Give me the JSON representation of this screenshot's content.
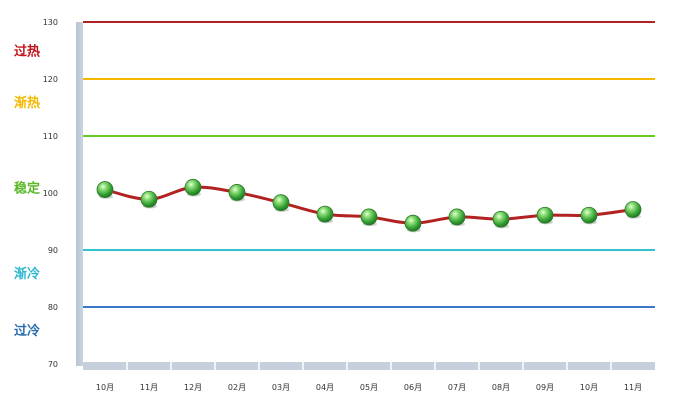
{
  "chart_data": {
    "type": "line",
    "title": "",
    "xlabel": "",
    "ylabel": "",
    "ylim": [
      70,
      130
    ],
    "y_ticks": [
      70,
      80,
      90,
      100,
      110,
      120,
      130
    ],
    "categories": [
      "10月",
      "11月",
      "12月",
      "02月",
      "03月",
      "04月",
      "05月",
      "06月",
      "07月",
      "08月",
      "09月",
      "10月",
      "11月"
    ],
    "series": [
      {
        "values": [
          100.6,
          98.9,
          101.0,
          100.1,
          98.3,
          96.3,
          95.8,
          94.7,
          95.8,
          95.4,
          96.1,
          96.1,
          97.1
        ]
      }
    ],
    "line_color": "#b22222",
    "marker_color": "#3aa83a",
    "reference_lines": [
      {
        "value": 130,
        "color": "#b22222"
      },
      {
        "value": 120,
        "color": "#f5b800"
      },
      {
        "value": 110,
        "color": "#66cc22"
      },
      {
        "value": 90,
        "color": "#33c4d0"
      },
      {
        "value": 80,
        "color": "#3a78c8"
      }
    ],
    "zones": [
      {
        "label": "过热",
        "value": 125,
        "color": "#c0141c"
      },
      {
        "label": "渐热",
        "value": 116,
        "color": "#f5b800"
      },
      {
        "label": "稳定",
        "value": 101,
        "color": "#5ab82a"
      },
      {
        "label": "渐冷",
        "value": 86,
        "color": "#2fb8d0"
      },
      {
        "label": "过冷",
        "value": 76,
        "color": "#2a6cb0"
      }
    ],
    "grid": false
  }
}
